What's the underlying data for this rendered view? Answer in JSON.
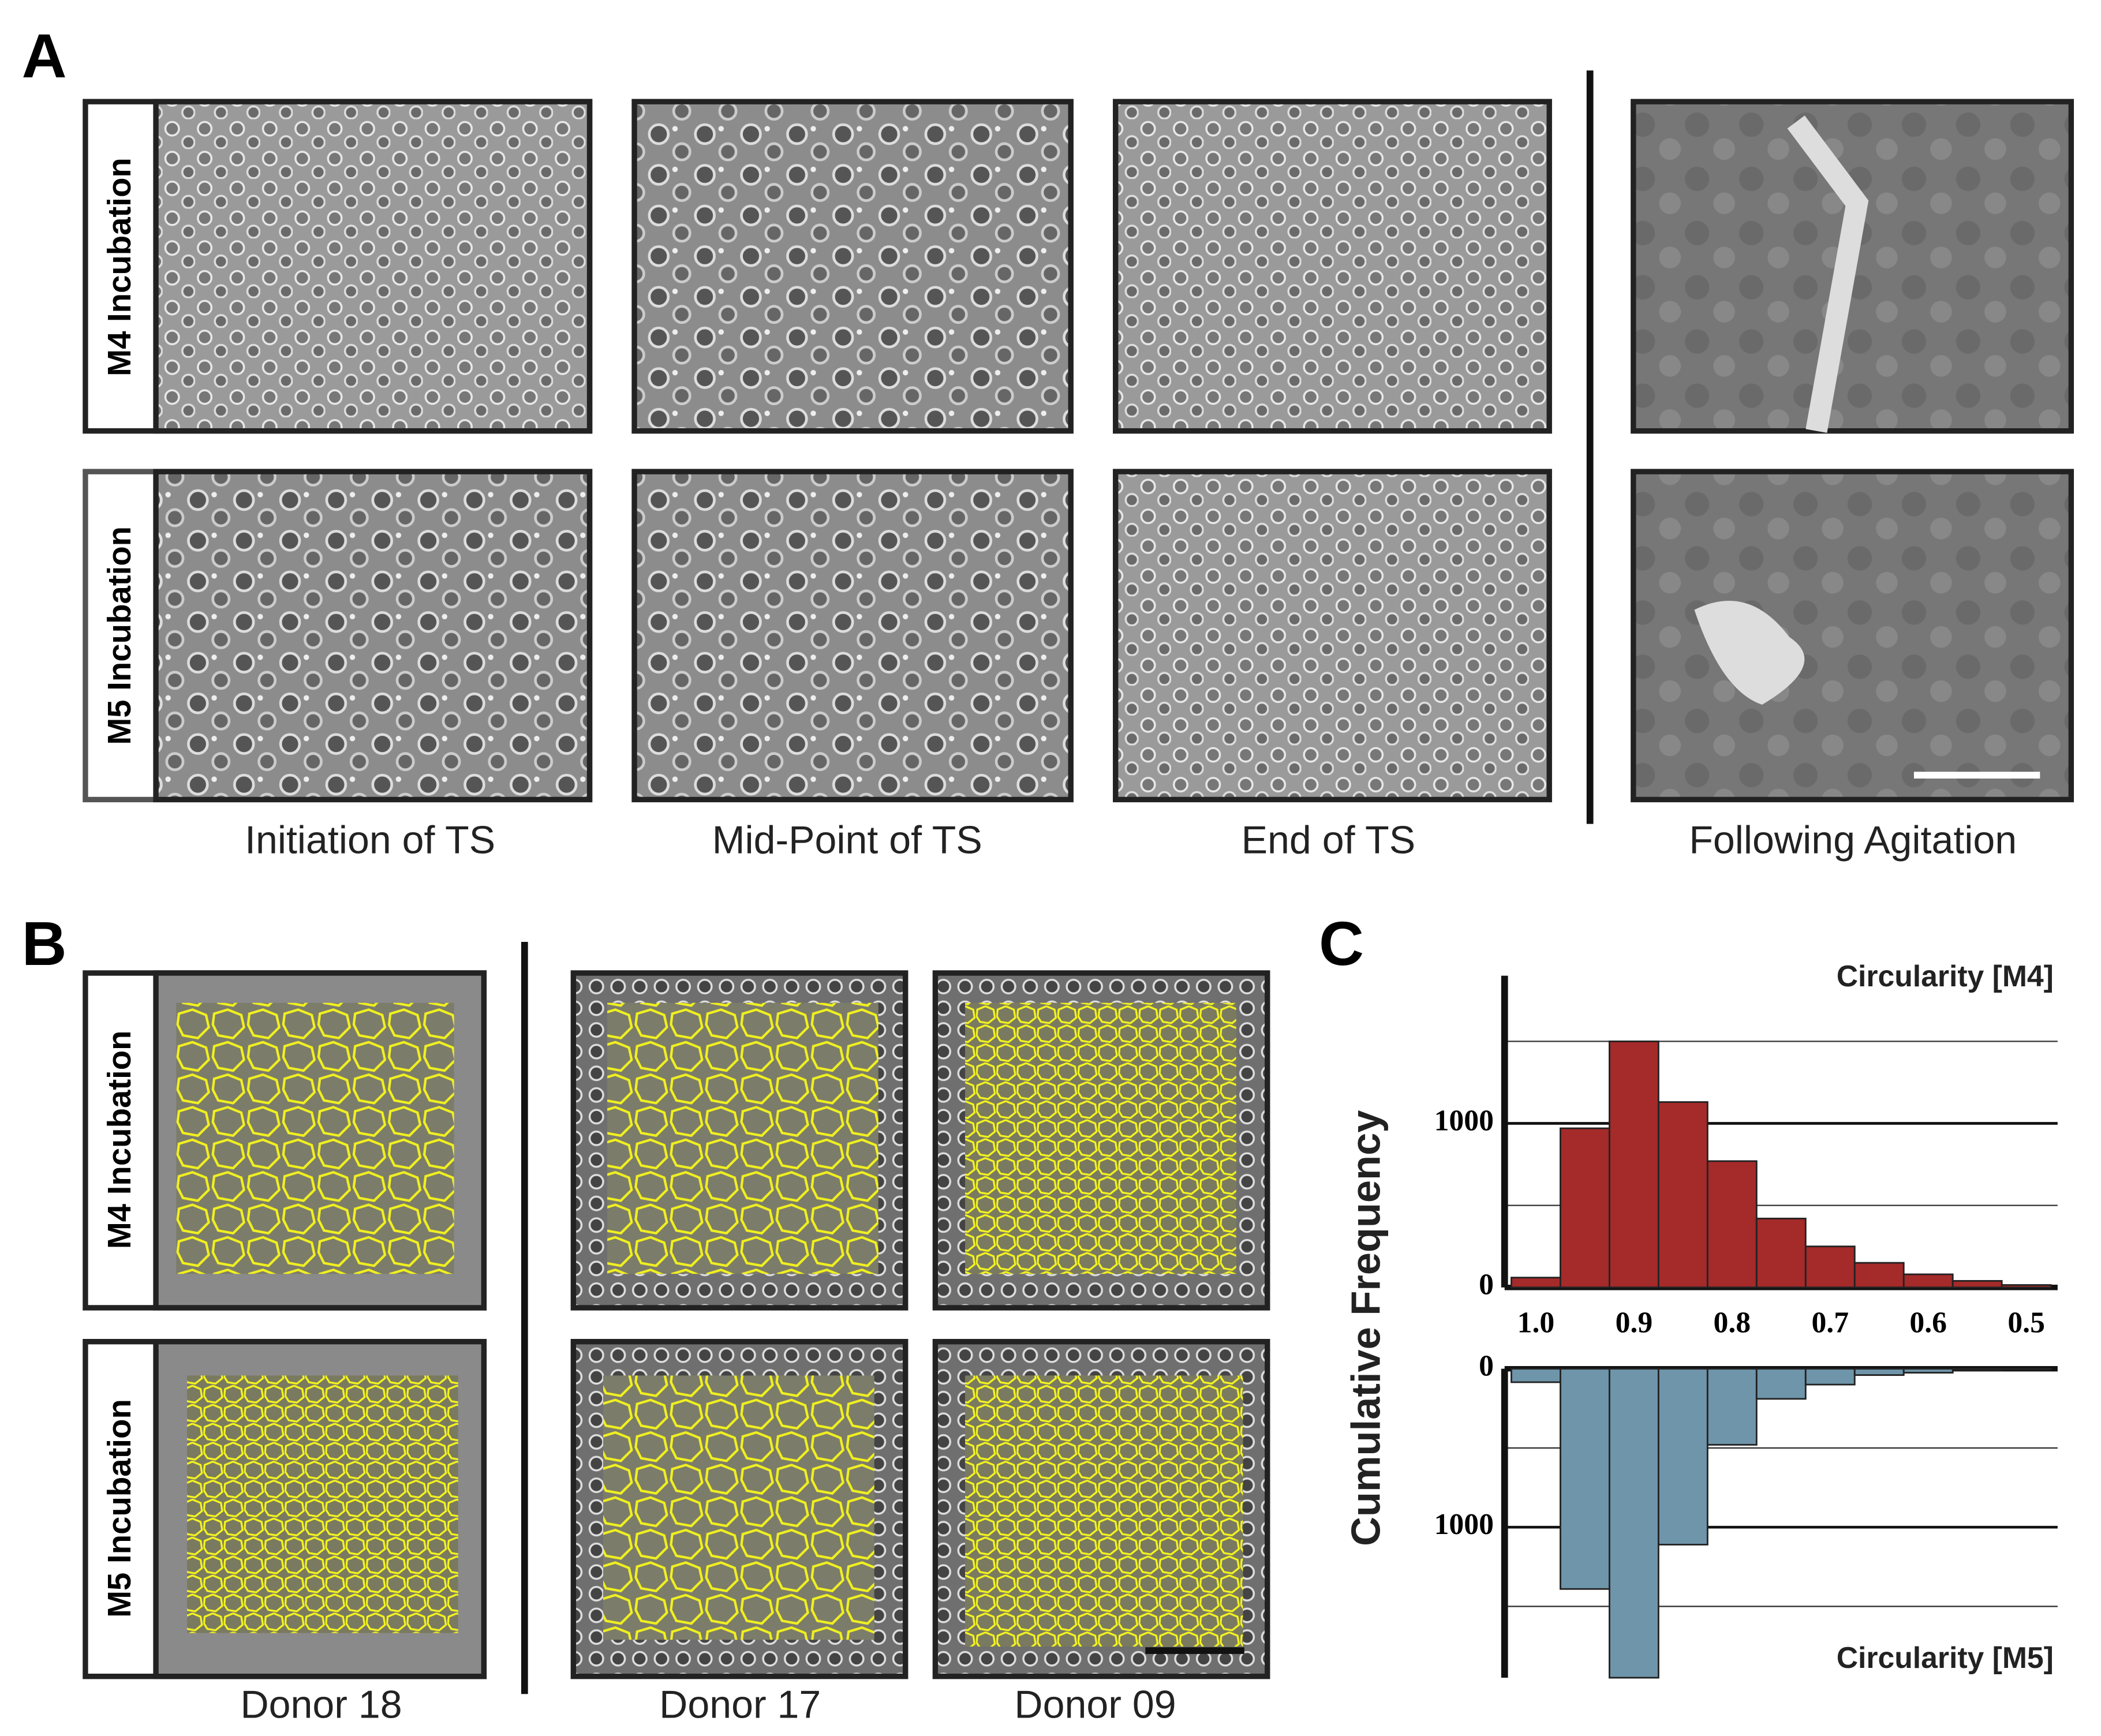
{
  "panel_labels": [
    "A",
    "B",
    "C"
  ],
  "panel_a": {
    "row_labels": [
      "M4 Incubation",
      "M5 Incubation"
    ],
    "column_labels": [
      "Initiation of TS",
      "Mid-Point of TS",
      "End of TS",
      "Following Agitation"
    ]
  },
  "panel_b": {
    "row_labels": [
      "M4 Incubation",
      "M5 Incubation"
    ],
    "column_labels": [
      "Donor 18",
      "Donor 17",
      "Donor 09"
    ]
  },
  "chart_data": {
    "type": "histogram",
    "y_label": "Cumulative Frequency",
    "bins": [
      1.025,
      0.975,
      0.925,
      0.875,
      0.825,
      0.775,
      0.725,
      0.675,
      0.625,
      0.575,
      0.525,
      0.475
    ],
    "xlim": [
      1.025,
      0.475
    ],
    "xticks": [
      {
        "value": 1,
        "label": "1.0"
      },
      0.9,
      0.8,
      0.7,
      0.6,
      0.5
    ],
    "series": [
      {
        "name": "Circularity [M4]",
        "color": "#a52a2a",
        "values": [
          60,
          970,
          1500,
          1130,
          770,
          420,
          250,
          150,
          80,
          40,
          15
        ],
        "ylim": [
          0,
          1900
        ]
      },
      {
        "name": "Circularity [M5]",
        "color": "#6f95aa",
        "values": [
          85,
          1390,
          1950,
          1110,
          480,
          190,
          100,
          40,
          25,
          10,
          5
        ],
        "ylim": [
          0,
          1950
        ]
      }
    ],
    "yticks": [
      0,
      1000
    ],
    "minor_yticks": [
      500,
      1500
    ],
    "grid": true
  }
}
